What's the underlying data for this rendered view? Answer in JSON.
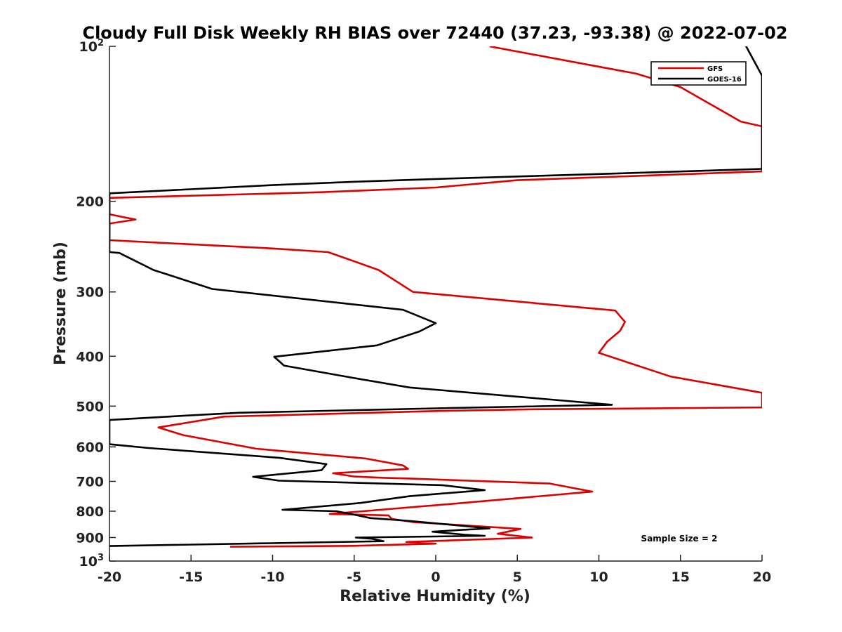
{
  "chart_data": {
    "type": "line",
    "title": "Cloudy Full Disk Weekly RH BIAS over 72440 (37.23, -93.38) @ 2022-07-02",
    "xlabel": "Relative Humidity (%)",
    "ylabel": "Pressure (mb)",
    "xlim": [
      -20,
      20
    ],
    "ylim": [
      100,
      1000
    ],
    "y_scale": "log",
    "y_reversed": true,
    "grid": false,
    "legend_position": "top-right",
    "x_ticks": [
      -20,
      -15,
      -10,
      -5,
      0,
      5,
      10,
      15,
      20
    ],
    "x_tick_labels": [
      "-20",
      "-15",
      "-10",
      "-5",
      "0",
      "5",
      "10",
      "15",
      "20"
    ],
    "y_ticks": [
      {
        "value": 100,
        "label": "10",
        "sup": "2"
      },
      {
        "value": 200,
        "label": "200",
        "sup": ""
      },
      {
        "value": 300,
        "label": "300",
        "sup": ""
      },
      {
        "value": 400,
        "label": "400",
        "sup": ""
      },
      {
        "value": 500,
        "label": "500",
        "sup": ""
      },
      {
        "value": 600,
        "label": "600",
        "sup": ""
      },
      {
        "value": 700,
        "label": "700",
        "sup": ""
      },
      {
        "value": 800,
        "label": "800",
        "sup": ""
      },
      {
        "value": 900,
        "label": "900",
        "sup": ""
      },
      {
        "value": 1000,
        "label": "10",
        "sup": "3"
      }
    ],
    "series": [
      {
        "name": "GFS",
        "color": "#dd0000",
        "points": [
          [
            3.3,
            100
          ],
          [
            12.3,
            113
          ],
          [
            15,
            120
          ],
          [
            18.7,
            140
          ],
          [
            20,
            143
          ],
          [
            20,
            175
          ],
          [
            5,
            182
          ],
          [
            0,
            188
          ],
          [
            -7,
            192
          ],
          [
            -20,
            197
          ],
          [
            -20,
            212
          ],
          [
            -18.4,
            217
          ],
          [
            -20,
            221
          ],
          [
            -20,
            238
          ],
          [
            -10,
            247
          ],
          [
            -6.6,
            251
          ],
          [
            -3.5,
            272
          ],
          [
            -1.4,
            300
          ],
          [
            11,
            326
          ],
          [
            11.6,
            343
          ],
          [
            11.3,
            357
          ],
          [
            10.5,
            375
          ],
          [
            10,
            394
          ],
          [
            14.4,
            438
          ],
          [
            20,
            471
          ],
          [
            20,
            503
          ],
          [
            6,
            507
          ],
          [
            0,
            511
          ],
          [
            -13,
            524
          ],
          [
            -17,
            550
          ],
          [
            -15.5,
            569
          ],
          [
            -11,
            605
          ],
          [
            -4.3,
            632
          ],
          [
            -2,
            652
          ],
          [
            -1.7,
            662
          ],
          [
            -6.3,
            675
          ],
          [
            -5,
            685
          ],
          [
            -3.2,
            689
          ],
          [
            -1.8,
            691
          ],
          [
            7,
            707
          ],
          [
            9.6,
            733
          ],
          [
            0.8,
            775
          ],
          [
            -6.5,
            810
          ],
          [
            -2.9,
            815
          ],
          [
            -2.7,
            828
          ],
          [
            -1.4,
            840
          ],
          [
            5.2,
            866
          ],
          [
            3.8,
            885
          ],
          [
            5.9,
            900
          ],
          [
            -1.8,
            918
          ],
          [
            0,
            925
          ],
          [
            -5,
            934
          ],
          [
            -12.6,
            938
          ]
        ]
      },
      {
        "name": "GOES-16",
        "color": "#000000",
        "points": [
          [
            18.8,
            97
          ],
          [
            20,
            114
          ],
          [
            20,
            173
          ],
          [
            10,
            177
          ],
          [
            0,
            181
          ],
          [
            -4.5,
            183
          ],
          [
            -10,
            186
          ],
          [
            -20,
            193
          ],
          [
            -20,
            251
          ],
          [
            -19.4,
            252
          ],
          [
            -17.3,
            272
          ],
          [
            -13.7,
            296
          ],
          [
            -2,
            325
          ],
          [
            0,
            345
          ],
          [
            -1,
            358
          ],
          [
            -3.6,
            381
          ],
          [
            -9.9,
            401
          ],
          [
            -9.3,
            417
          ],
          [
            -5,
            441
          ],
          [
            -1.6,
            460
          ],
          [
            10.8,
            497
          ],
          [
            0,
            505
          ],
          [
            -12.1,
            515
          ],
          [
            -15,
            521
          ],
          [
            -20,
            532
          ],
          [
            -20,
            593
          ],
          [
            -17.6,
            603
          ],
          [
            -9.6,
            630
          ],
          [
            -6.7,
            648
          ],
          [
            -7,
            666
          ],
          [
            -11.2,
            686
          ],
          [
            -9.6,
            698
          ],
          [
            0.4,
            712
          ],
          [
            3,
            728
          ],
          [
            -1.6,
            748
          ],
          [
            -4.6,
            771
          ],
          [
            -9.4,
            795
          ],
          [
            -6.1,
            800
          ],
          [
            -5.2,
            810
          ],
          [
            -4,
            825
          ],
          [
            -1.5,
            836
          ],
          [
            3.3,
            864
          ],
          [
            1.5,
            870
          ],
          [
            -0.2,
            877
          ],
          [
            1.8,
            889
          ],
          [
            3,
            893
          ],
          [
            -4.9,
            900
          ],
          [
            -3.9,
            905
          ],
          [
            -3.2,
            915
          ],
          [
            -20,
            935
          ]
        ]
      }
    ],
    "annotations": [
      "Sample Size = 2"
    ]
  }
}
